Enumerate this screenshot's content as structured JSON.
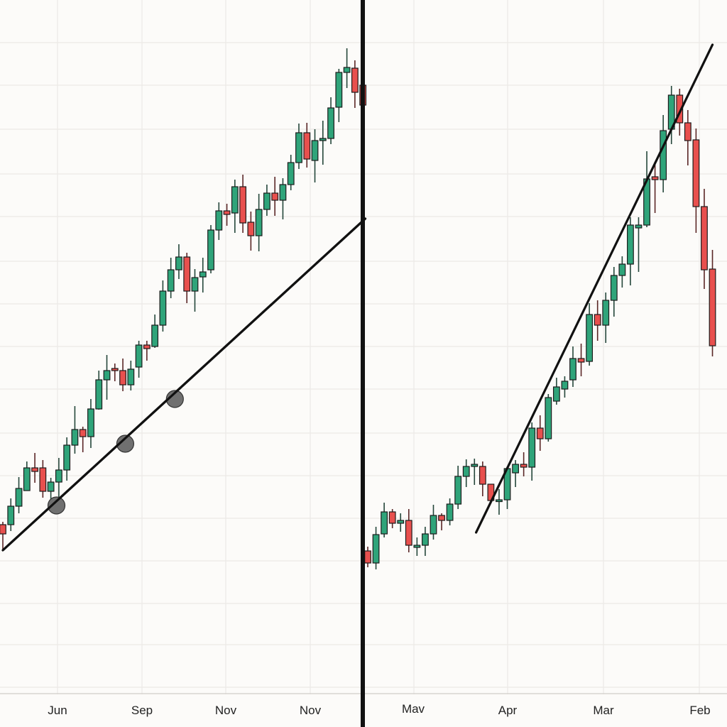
{
  "chart_data": [
    {
      "type": "candlestick",
      "panel": "left",
      "title": "",
      "xlabel": "",
      "ylabel": "",
      "grid": true,
      "x_tick_labels": [
        "Jun",
        "Sep",
        "Nov",
        "Nov"
      ],
      "ohlc_format": [
        "open",
        "high",
        "low",
        "close"
      ],
      "ylim": [
        0,
        100
      ],
      "candles": [
        [
          26.1,
          26.5,
          22.5,
          24.8
        ],
        [
          26.1,
          29.8,
          25.2,
          28.7
        ],
        [
          28.7,
          32.8,
          27.7,
          31.2
        ],
        [
          30.9,
          35.0,
          30.9,
          34.1
        ],
        [
          34.1,
          36.2,
          32.0,
          33.6
        ],
        [
          34.1,
          35.2,
          29.9,
          30.8
        ],
        [
          30.8,
          32.7,
          28.7,
          32.1
        ],
        [
          32.1,
          35.5,
          29.0,
          33.8
        ],
        [
          33.8,
          38.4,
          32.3,
          37.3
        ],
        [
          37.3,
          42.8,
          36.1,
          39.5
        ],
        [
          39.5,
          39.9,
          36.3,
          38.5
        ],
        [
          38.5,
          43.8,
          36.9,
          42.4
        ],
        [
          42.4,
          47.8,
          42.3,
          46.5
        ],
        [
          46.5,
          50.0,
          43.7,
          47.8
        ],
        [
          48.1,
          48.8,
          46.3,
          47.8
        ],
        [
          47.8,
          49.5,
          44.9,
          45.8
        ],
        [
          45.8,
          49.2,
          45.0,
          48.0
        ],
        [
          48.3,
          52.0,
          46.8,
          51.4
        ],
        [
          51.4,
          52.0,
          49.2,
          50.9
        ],
        [
          51.2,
          55.7,
          51.0,
          54.2
        ],
        [
          54.2,
          60.5,
          53.3,
          59.0
        ],
        [
          59.0,
          63.7,
          58.0,
          62.0
        ],
        [
          62.0,
          65.6,
          60.7,
          63.8
        ],
        [
          63.8,
          64.4,
          57.3,
          59.0
        ],
        [
          59.0,
          62.1,
          56.1,
          60.9
        ],
        [
          61.0,
          63.7,
          58.8,
          61.7
        ],
        [
          62.0,
          68.3,
          61.5,
          67.6
        ],
        [
          67.6,
          71.5,
          66.2,
          70.3
        ],
        [
          70.3,
          71.3,
          68.2,
          69.8
        ],
        [
          70.0,
          74.7,
          67.2,
          73.7
        ],
        [
          73.7,
          75.4,
          67.2,
          68.6
        ],
        [
          68.7,
          70.2,
          64.7,
          66.8
        ],
        [
          66.8,
          72.7,
          64.6,
          70.5
        ],
        [
          70.5,
          74.0,
          69.6,
          72.8
        ],
        [
          72.8,
          75.1,
          69.6,
          71.8
        ],
        [
          71.8,
          74.9,
          69.1,
          74.0
        ],
        [
          74.0,
          78.2,
          73.2,
          77.1
        ],
        [
          77.1,
          82.6,
          76.2,
          81.3
        ],
        [
          81.3,
          82.7,
          76.4,
          77.6
        ],
        [
          77.4,
          81.8,
          74.3,
          80.2
        ],
        [
          80.2,
          83.0,
          76.8,
          80.5
        ],
        [
          80.5,
          86.3,
          79.7,
          84.8
        ],
        [
          84.9,
          90.3,
          82.8,
          89.8
        ],
        [
          89.8,
          93.2,
          87.6,
          90.5
        ],
        [
          90.4,
          91.5,
          84.8,
          87.0
        ],
        [
          88.0,
          88.2,
          85.0,
          85.2
        ]
      ],
      "trendline": {
        "from": [
          0,
          22.5
        ],
        "to": [
          45.3,
          69.2
        ]
      },
      "touch_points": [
        [
          6.7,
          28.8
        ],
        [
          15.3,
          37.5
        ],
        [
          21.5,
          43.8
        ]
      ]
    },
    {
      "type": "candlestick",
      "panel": "right",
      "title": "",
      "xlabel": "",
      "ylabel": "",
      "grid": true,
      "x_tick_labels": [
        "Mav",
        "Apr",
        "Mar",
        "Feb"
      ],
      "ohlc_format": [
        "open",
        "high",
        "low",
        "close"
      ],
      "ylim": [
        0,
        100
      ],
      "candles": [
        [
          22.4,
          23.0,
          20.1,
          20.7
        ],
        [
          20.7,
          25.8,
          19.8,
          24.7
        ],
        [
          24.8,
          29.2,
          24.3,
          27.9
        ],
        [
          27.9,
          28.3,
          25.6,
          26.3
        ],
        [
          26.3,
          27.7,
          25.1,
          26.7
        ],
        [
          26.7,
          28.3,
          22.2,
          23.2
        ],
        [
          22.9,
          24.3,
          21.7,
          23.2
        ],
        [
          23.2,
          25.8,
          21.7,
          24.8
        ],
        [
          24.8,
          28.9,
          24.0,
          27.4
        ],
        [
          27.4,
          27.7,
          25.3,
          26.7
        ],
        [
          26.7,
          29.8,
          26.0,
          29.0
        ],
        [
          29.0,
          34.4,
          28.3,
          32.9
        ],
        [
          32.9,
          35.3,
          31.4,
          34.3
        ],
        [
          34.3,
          35.4,
          31.7,
          34.6
        ],
        [
          34.3,
          35.0,
          30.1,
          31.8
        ],
        [
          31.8,
          31.8,
          29.5,
          29.5
        ],
        [
          29.4,
          31.1,
          27.5,
          29.6
        ],
        [
          29.6,
          34.3,
          28.3,
          34.0
        ],
        [
          33.4,
          35.2,
          31.4,
          34.6
        ],
        [
          34.6,
          36.3,
          32.9,
          34.2
        ],
        [
          34.2,
          40.5,
          32.3,
          39.7
        ],
        [
          39.7,
          41.5,
          36.5,
          38.2
        ],
        [
          38.2,
          44.5,
          37.8,
          44.0
        ],
        [
          43.5,
          46.8,
          43.0,
          45.5
        ],
        [
          45.2,
          47.0,
          44.0,
          46.3
        ],
        [
          46.5,
          51.2,
          45.5,
          49.5
        ],
        [
          49.5,
          51.6,
          47.0,
          49.0
        ],
        [
          49.1,
          57.3,
          48.5,
          55.7
        ],
        [
          55.7,
          57.7,
          52.0,
          54.2
        ],
        [
          54.2,
          58.8,
          51.7,
          57.7
        ],
        [
          57.7,
          62.4,
          55.4,
          61.2
        ],
        [
          61.2,
          63.9,
          59.5,
          62.8
        ],
        [
          62.8,
          69.4,
          59.8,
          68.3
        ],
        [
          67.9,
          69.4,
          61.7,
          68.3
        ],
        [
          68.3,
          78.7,
          68.0,
          74.8
        ],
        [
          75.1,
          77.2,
          70.0,
          74.7
        ],
        [
          74.7,
          83.8,
          72.9,
          81.6
        ],
        [
          81.8,
          87.9,
          79.7,
          86.6
        ],
        [
          86.6,
          87.5,
          80.9,
          82.7
        ],
        [
          82.7,
          84.5,
          76.7,
          80.2
        ],
        [
          80.3,
          81.9,
          67.2,
          70.9
        ],
        [
          70.9,
          73.4,
          59.3,
          62.0
        ],
        [
          62.1,
          64.8,
          49.8,
          51.3
        ]
      ],
      "trendline": {
        "from": [
          13.2,
          25.0
        ],
        "to": [
          42.0,
          93.7
        ]
      }
    }
  ],
  "colors": {
    "up": "#2fa47a",
    "down": "#e8504e",
    "outline": "#1c1c1c",
    "background": "#fcfbf9",
    "grid": "#ebe9e6",
    "touch_point": "#707070"
  }
}
